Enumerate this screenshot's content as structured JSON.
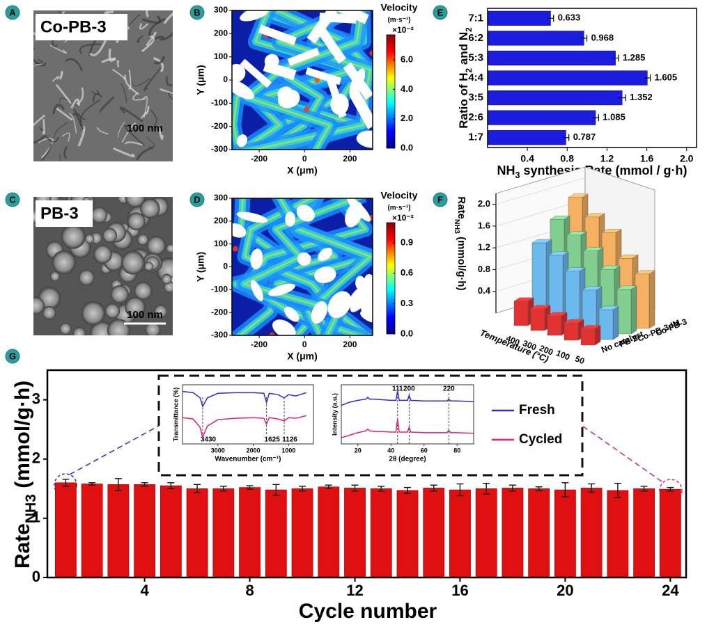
{
  "panel_labels": [
    "A",
    "B",
    "C",
    "D",
    "E",
    "F",
    "G"
  ],
  "images": [
    {
      "caption": "Co-PB-3",
      "scale_bar": "100 nm"
    },
    {
      "caption": "PB-3",
      "scale_bar": "100 nm"
    }
  ],
  "chart_data": [
    {
      "type": "field",
      "xlabel": "X (μm)",
      "ylabel": "Y (μm)",
      "xlim": [
        -320,
        300
      ],
      "ylim": [
        -300,
        300
      ],
      "xticks": [
        -200,
        0,
        200
      ],
      "yticks": [
        -300,
        -200,
        -100,
        0,
        100,
        200,
        300
      ],
      "colorbar": {
        "title": "Velocity",
        "unit": "(m·s⁻¹)",
        "multiplier": "×10⁻²",
        "lim": [
          0,
          7.7
        ],
        "ticks": [
          {
            "value": 0,
            "label": "0.0"
          },
          {
            "value": 2,
            "label": "2.0"
          },
          {
            "value": 4,
            "label": "4.0"
          },
          {
            "value": 6,
            "label": "6.0"
          }
        ]
      }
    },
    {
      "type": "field",
      "xlabel": "X (μm)",
      "ylabel": "Y (μm)",
      "xlim": [
        -320,
        300
      ],
      "ylim": [
        -300,
        300
      ],
      "xticks": [
        -200,
        0,
        200
      ],
      "yticks": [
        -300,
        -200,
        -100,
        0,
        100,
        200,
        300
      ],
      "colorbar": {
        "title": "Velocity",
        "unit": "(m·s⁻¹)",
        "multiplier": "×10⁻²",
        "lim": [
          0,
          1.1
        ],
        "ticks": [
          {
            "value": 0,
            "label": "0.0"
          },
          0.3,
          0.6,
          0.9
        ]
      }
    },
    {
      "type": "bar",
      "orientation": "horizontal",
      "ylabel": [
        "Ratio of H",
        "2",
        " and N",
        "2"
      ],
      "xlabel": [
        "NH",
        "3",
        " synthesis Rate (mmol / g·h)"
      ],
      "categories": [
        "7:1",
        "6:2",
        "5:3",
        "4:4",
        "3:5",
        "2:6",
        "1:7"
      ],
      "values": [
        0.633,
        0.968,
        1.285,
        1.605,
        1.352,
        1.085,
        0.787
      ],
      "errors": [
        0.03,
        0.03,
        0.03,
        0.03,
        0.035,
        0.03,
        0.03
      ],
      "color": "#1c1ce0",
      "xlim": [
        0,
        2.1
      ],
      "xticks": [
        0.4,
        0.8,
        1.2,
        1.6,
        {
          "value": 2,
          "label": "2.0"
        }
      ]
    },
    {
      "type": "bar3d",
      "zlabel": [
        "Rate",
        "NH3",
        " (mmol/g·h)"
      ],
      "xlabel": "Temperature (°C)",
      "categories": [
        "400",
        "300",
        "200",
        "100",
        "50"
      ],
      "series": [
        {
          "name": "No catalyst",
          "color": "#e23232",
          "values": [
            0.45,
            0.4,
            0.36,
            0.32,
            0.3
          ]
        },
        {
          "name": "PB-3",
          "color": "#6cb9ef",
          "values": [
            1.42,
            1.28,
            1.08,
            0.82,
            0.55
          ]
        },
        {
          "name": "Co-PB-3-IM",
          "color": "#80cf90",
          "values": [
            1.75,
            1.55,
            1.35,
            1.1,
            0.82
          ]
        },
        {
          "name": "Co-PB-3",
          "color": "#f6b062",
          "values": [
            2.05,
            1.78,
            1.58,
            1.2,
            1.0
          ]
        }
      ],
      "zlim": [
        0,
        2.2
      ],
      "zticks": [
        0.4,
        0.8,
        1.2,
        1.6,
        {
          "value": 2,
          "label": "2.0"
        }
      ]
    },
    {
      "type": "bar",
      "xlabel": "Cycle number",
      "ylabel": [
        "Rate",
        "NH3",
        " (mmol/g·h)"
      ],
      "x": [
        1,
        2,
        3,
        4,
        5,
        6,
        7,
        8,
        9,
        10,
        11,
        12,
        13,
        14,
        15,
        16,
        17,
        18,
        19,
        20,
        21,
        22,
        23,
        24
      ],
      "values": [
        1.6,
        1.58,
        1.57,
        1.57,
        1.55,
        1.5,
        1.5,
        1.52,
        1.48,
        1.5,
        1.53,
        1.51,
        1.5,
        1.47,
        1.51,
        1.48,
        1.5,
        1.51,
        1.5,
        1.48,
        1.51,
        1.47,
        1.5,
        1.49
      ],
      "errors": [
        0.06,
        0.02,
        0.1,
        0.03,
        0.05,
        0.07,
        0.04,
        0.03,
        0.09,
        0.04,
        0.03,
        0.05,
        0.04,
        0.05,
        0.05,
        0.1,
        0.09,
        0.05,
        0.03,
        0.12,
        0.07,
        0.12,
        0.04,
        0.03
      ],
      "color": "#e01010",
      "xlim": [
        0.3,
        24.6
      ],
      "ylim": [
        0,
        3.5
      ],
      "xticks": [
        4,
        8,
        12,
        16,
        20,
        24
      ],
      "yticks": [
        0,
        1,
        2,
        3
      ],
      "legend": [
        {
          "name": "Fresh",
          "color": "#2b2bd6"
        },
        {
          "name": "Cycled",
          "color": "#e0207a"
        }
      ],
      "insets": [
        {
          "type": "line",
          "xlabel": "Wavenumber (cm⁻¹)",
          "ylabel": "Transmittance (%)",
          "x": [
            4000,
            3700,
            3500,
            3430,
            3300,
            3000,
            2500,
            2000,
            1700,
            1625,
            1550,
            1300,
            1126,
            1000,
            800,
            500
          ],
          "xlim": [
            4000,
            300
          ],
          "ylim": [
            0.15,
            1.05
          ],
          "xticks": [
            3000,
            2000,
            1000
          ],
          "annotations": [
            3430,
            1625,
            1126
          ],
          "series": [
            {
              "color": "#2b2bd6",
              "values": [
                0.95,
                0.93,
                0.85,
                0.72,
                0.85,
                0.92,
                0.93,
                0.93,
                0.92,
                0.78,
                0.92,
                0.9,
                0.85,
                0.9,
                0.88,
                0.93
              ]
            },
            {
              "color": "#e0207a",
              "values": [
                0.55,
                0.53,
                0.4,
                0.25,
                0.42,
                0.52,
                0.54,
                0.55,
                0.54,
                0.45,
                0.55,
                0.53,
                0.5,
                0.55,
                0.54,
                0.58
              ]
            }
          ]
        },
        {
          "type": "line",
          "xlabel": "2θ (degree)",
          "ylabel": "Intensity (a.u.)",
          "x": [
            10,
            15,
            20,
            25,
            26,
            27,
            30,
            35,
            40,
            43,
            44,
            45,
            50,
            51,
            52,
            60,
            70,
            74,
            75,
            76,
            80,
            90
          ],
          "xlim": [
            10,
            90
          ],
          "ylim": [
            0.1,
            1.05
          ],
          "xticks": [
            20,
            40,
            60,
            80
          ],
          "annotations": [
            {
              "value": 44,
              "label": "111"
            },
            {
              "value": 51,
              "label": "200"
            },
            {
              "value": 75,
              "label": "220"
            }
          ],
          "series": [
            {
              "color": "#2b2bd6",
              "values": [
                0.72,
                0.77,
                0.8,
                0.82,
                0.85,
                0.82,
                0.82,
                0.81,
                0.8,
                0.8,
                0.95,
                0.8,
                0.8,
                0.88,
                0.8,
                0.79,
                0.79,
                0.79,
                0.82,
                0.79,
                0.79,
                0.78
              ]
            },
            {
              "color": "#e0207a",
              "values": [
                0.2,
                0.24,
                0.28,
                0.31,
                0.34,
                0.31,
                0.3,
                0.3,
                0.29,
                0.29,
                0.5,
                0.29,
                0.29,
                0.37,
                0.29,
                0.28,
                0.28,
                0.28,
                0.32,
                0.28,
                0.28,
                0.27
              ]
            }
          ]
        }
      ]
    }
  ]
}
